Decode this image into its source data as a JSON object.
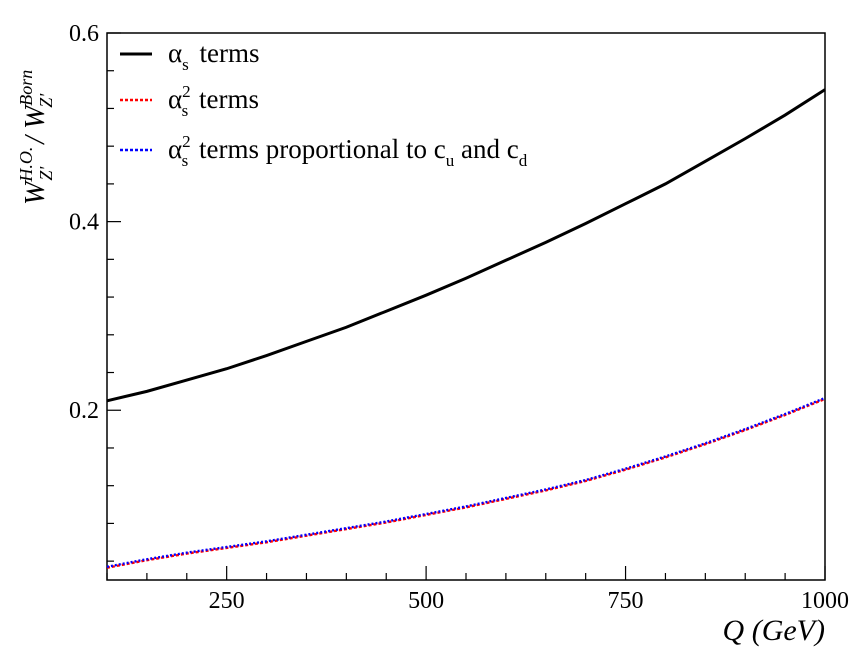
{
  "chart_data": {
    "type": "line",
    "xlabel": "Q (GeV)",
    "ylabel": "W_{Z'}^{H.O.} / W_{Z'}^{Born}",
    "xlim": [
      100,
      1000
    ],
    "ylim": [
      0.02,
      0.6
    ],
    "xticks": [
      250,
      500,
      750,
      1000
    ],
    "xtick_labels": [
      "250",
      "500",
      "750",
      "1000"
    ],
    "yticks": [
      0.2,
      0.4,
      0.6
    ],
    "ytick_labels": [
      "0.2",
      "0.4",
      "0.6"
    ],
    "grid": false,
    "legend_position": "top-left",
    "series": [
      {
        "name": "αs terms",
        "legend": {
          "symbol": "α",
          "sub": "s",
          "sup": "",
          "text": "terms"
        },
        "color": "#000000",
        "style": "solid",
        "x": [
          100,
          150,
          200,
          250,
          300,
          350,
          400,
          450,
          500,
          550,
          600,
          650,
          700,
          750,
          800,
          850,
          900,
          950,
          1000
        ],
        "y": [
          0.21,
          0.22,
          0.232,
          0.244,
          0.258,
          0.273,
          0.288,
          0.305,
          0.322,
          0.34,
          0.359,
          0.378,
          0.398,
          0.419,
          0.44,
          0.464,
          0.488,
          0.513,
          0.54
        ]
      },
      {
        "name": "αs² terms",
        "legend": {
          "symbol": "α",
          "sub": "s",
          "sup": "2",
          "text": "terms"
        },
        "color": "#ff0000",
        "style": "dotted",
        "x": [
          100,
          150,
          200,
          250,
          300,
          350,
          400,
          450,
          500,
          550,
          600,
          650,
          700,
          750,
          800,
          850,
          900,
          950,
          1000
        ],
        "y": [
          0.033,
          0.041,
          0.048,
          0.054,
          0.06,
          0.067,
          0.074,
          0.081,
          0.089,
          0.097,
          0.106,
          0.115,
          0.125,
          0.137,
          0.15,
          0.164,
          0.179,
          0.195,
          0.212
        ]
      },
      {
        "name": "αs² terms proportional to cu and cd",
        "legend": {
          "symbol": "α",
          "sub": "s",
          "sup": "2",
          "text": "terms proportional to c",
          "sub2": "u",
          "text2": " and c",
          "sub3": "d"
        },
        "color": "#0000ff",
        "style": "dotted",
        "x": [
          100,
          150,
          200,
          250,
          300,
          350,
          400,
          450,
          500,
          550,
          600,
          650,
          700,
          750,
          800,
          850,
          900,
          950,
          1000
        ],
        "y": [
          0.034,
          0.042,
          0.049,
          0.055,
          0.061,
          0.068,
          0.075,
          0.082,
          0.09,
          0.098,
          0.107,
          0.116,
          0.126,
          0.138,
          0.151,
          0.165,
          0.18,
          0.196,
          0.213
        ]
      }
    ]
  }
}
